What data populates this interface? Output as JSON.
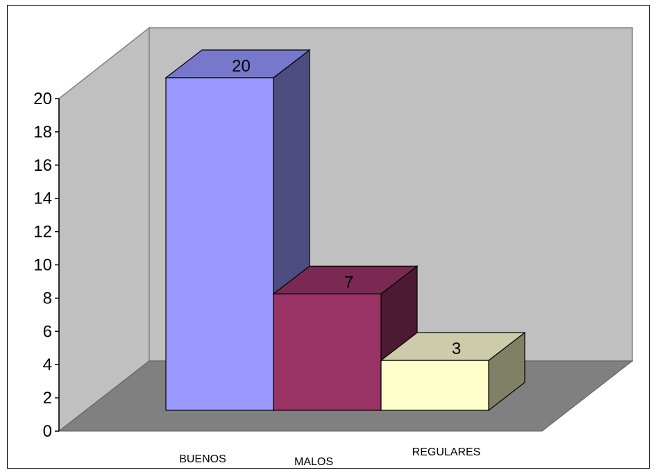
{
  "chart_data": {
    "type": "bar",
    "style": "3d",
    "categories": [
      "BUENOS",
      "MALOS",
      "REGULARES"
    ],
    "values": [
      20,
      7,
      3
    ],
    "data_labels": [
      "20",
      "7",
      "3"
    ],
    "ylim": [
      0,
      20
    ],
    "yticks": [
      "0",
      "2",
      "4",
      "6",
      "8",
      "10",
      "12",
      "14",
      "16",
      "18",
      "20"
    ],
    "grid": false,
    "colors": {
      "bars": [
        {
          "front": "#9999ff",
          "top": "#7777cc",
          "side": "#4c4c80"
        },
        {
          "front": "#993366",
          "top": "#7a2952",
          "side": "#4d1a33"
        },
        {
          "front": "#ffffcc",
          "top": "#ccccaa",
          "side": "#808066"
        }
      ],
      "back_wall": "#c0c0c0",
      "side_wall": "#c0c0c0",
      "floor": "#808080"
    }
  }
}
